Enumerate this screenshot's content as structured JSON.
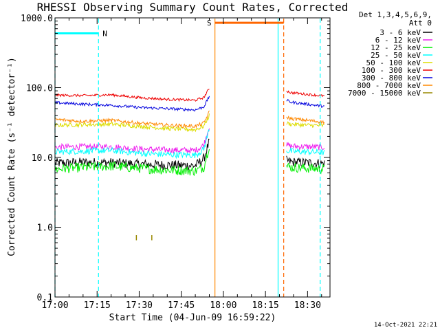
{
  "chart_data": {
    "type": "line",
    "title": "RHESSI Observing Summary Count Rates, Corrected",
    "xlabel": "Start Time (04-Jun-09 16:59:22)",
    "ylabel": "Corrected Count Rate (s⁻¹ detector⁻¹)",
    "yscale": "log",
    "ylim": [
      0.1,
      1000
    ],
    "xlim_minutes": [
      0,
      98
    ],
    "x_unit": "minutes after start time",
    "xticks": [
      {
        "minute": 0,
        "label": "17:00"
      },
      {
        "minute": 15,
        "label": "17:15"
      },
      {
        "minute": 30,
        "label": "17:30"
      },
      {
        "minute": 45,
        "label": "17:45"
      },
      {
        "minute": 60,
        "label": "18:00"
      },
      {
        "minute": 75,
        "label": "18:15"
      },
      {
        "minute": 90,
        "label": "18:30"
      }
    ],
    "yticks": [
      {
        "value": 0.1,
        "label": "0.1"
      },
      {
        "value": 1,
        "label": "1.0"
      },
      {
        "value": 10,
        "label": "10.0"
      },
      {
        "value": 100,
        "label": "100.0"
      },
      {
        "value": 1000,
        "label": "1000.0"
      }
    ],
    "legend": {
      "header": [
        "Det 1,3,4,5,6,9,",
        "Att 0"
      ],
      "placement": "right of plot"
    },
    "gap_minutes": [
      57,
      82
    ],
    "series": [
      {
        "name": "3 - 6 keV",
        "color": "#000000",
        "segments": [
          {
            "x": [
              0,
              10,
              20,
              30,
              40,
              50,
              53,
              55
            ],
            "y": [
              8.3,
              8.5,
              8.4,
              8.0,
              7.8,
              7.6,
              9.5,
              17
            ]
          },
          {
            "x": [
              82.5,
              84,
              90,
              96
            ],
            "y": [
              9.0,
              8.6,
              8.4,
              8.2
            ]
          }
        ]
      },
      {
        "name": "6 - 12 keV",
        "color": "#ee22ee",
        "segments": [
          {
            "x": [
              0,
              10,
              20,
              30,
              40,
              50,
              53,
              55
            ],
            "y": [
              14,
              14.2,
              14.3,
              13.2,
              12.8,
              12.6,
              15,
              28
            ]
          },
          {
            "x": [
              82.5,
              84,
              90,
              96
            ],
            "y": [
              15,
              14.5,
              14.2,
              14
            ]
          }
        ]
      },
      {
        "name": "12 - 25 keV",
        "color": "#00ee00",
        "segments": [
          {
            "x": [
              0,
              10,
              20,
              30,
              40,
              50,
              53,
              55
            ],
            "y": [
              6.8,
              7.2,
              7.5,
              7.0,
              6.6,
              6.4,
              7.2,
              15
            ]
          },
          {
            "x": [
              82.5,
              84,
              90,
              96
            ],
            "y": [
              7.5,
              7.2,
              7.0,
              6.8
            ]
          }
        ]
      },
      {
        "name": "25 - 50 keV",
        "color": "#00ffff",
        "segments": [
          {
            "x": [
              0,
              10,
              20,
              30,
              40,
              50,
              53,
              55
            ],
            "y": [
              12,
              12.3,
              12.6,
              11.5,
              11.0,
              10.8,
              13,
              26
            ]
          },
          {
            "x": [
              82.5,
              84,
              90,
              96
            ],
            "y": [
              12.5,
              12.2,
              12,
              11.8
            ]
          }
        ]
      },
      {
        "name": "50 - 100 keV",
        "color": "#dddd00",
        "segments": [
          {
            "x": [
              0,
              10,
              20,
              30,
              40,
              50,
              53,
              55
            ],
            "y": [
              29,
              29.5,
              30,
              28,
              26,
              25,
              28,
              40
            ]
          },
          {
            "x": [
              82.5,
              84,
              90,
              96
            ],
            "y": [
              31,
              30,
              29,
              28.5
            ]
          }
        ]
      },
      {
        "name": "100 - 300 keV",
        "color": "#ee0000",
        "segments": [
          {
            "x": [
              0,
              10,
              20,
              30,
              40,
              50,
              53,
              55
            ],
            "y": [
              78,
              77,
              79,
              72,
              68,
              66,
              72,
              98
            ]
          },
          {
            "x": [
              82.5,
              84,
              90,
              96
            ],
            "y": [
              90,
              85,
              80,
              76
            ]
          }
        ]
      },
      {
        "name": "300 - 800 keV",
        "color": "#0000dd",
        "segments": [
          {
            "x": [
              0,
              10,
              20,
              30,
              40,
              50,
              53,
              55
            ],
            "y": [
              61,
              58,
              56,
              52,
              50,
              48,
              53,
              75
            ]
          },
          {
            "x": [
              82.5,
              84,
              90,
              96
            ],
            "y": [
              66,
              62,
              58,
              54
            ]
          }
        ]
      },
      {
        "name": "800 - 7000 keV",
        "color": "#ff8800",
        "segments": [
          {
            "x": [
              0,
              10,
              20,
              30,
              40,
              50,
              53,
              55
            ],
            "y": [
              35,
              33,
              34,
              31,
              29,
              28,
              31,
              45
            ]
          },
          {
            "x": [
              82.5,
              84,
              90,
              96
            ],
            "y": [
              38,
              36,
              34,
              32
            ]
          }
        ]
      },
      {
        "name": "7000 - 15000 keV",
        "color": "#998800",
        "segments": [
          {
            "x": [
              29,
              29
            ],
            "y": [
              0.65,
              0.77
            ]
          },
          {
            "x": [
              34.5,
              34.5
            ],
            "y": [
              0.65,
              0.77
            ]
          }
        ]
      }
    ],
    "annotations": [
      {
        "text": "N",
        "color": "#00ffff",
        "x": [
          0,
          15.5
        ],
        "y": 600
      },
      {
        "text": "S",
        "color": "#ff6600",
        "x": [
          57,
          81.5
        ],
        "y": 850
      }
    ],
    "vertical_lines": [
      {
        "minute": 0,
        "color": "#00ffff",
        "style": "dashed"
      },
      {
        "minute": 15.5,
        "color": "#00ffff",
        "style": "dashed"
      },
      {
        "minute": 57,
        "color": "#ff8800",
        "style": "solid"
      },
      {
        "minute": 79.5,
        "color": "#00ffff",
        "style": "solid"
      },
      {
        "minute": 81.5,
        "color": "#ff6600",
        "style": "dashed"
      },
      {
        "minute": 94.5,
        "color": "#00ffff",
        "style": "dashed"
      }
    ]
  },
  "footer": {
    "timestamp": "14-Oct-2021 22:21"
  }
}
